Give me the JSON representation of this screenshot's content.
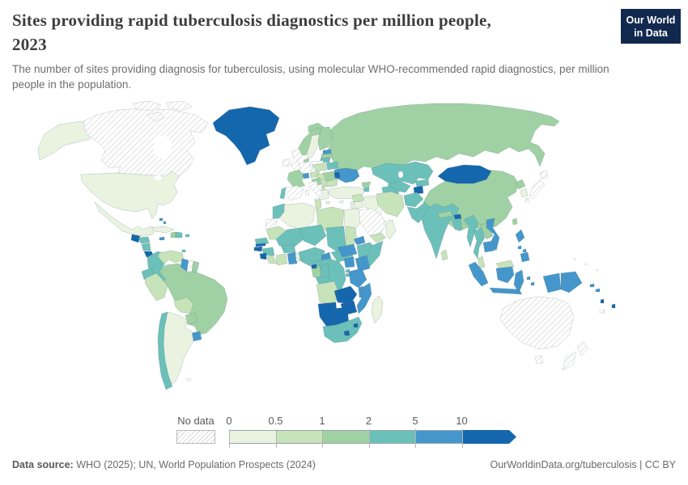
{
  "header": {
    "title_line1": "Sites providing rapid tuberculosis diagnostics per million people,",
    "title_line2": "2023",
    "subtitle": "The number of sites providing diagnosis for tuberculosis, using molecular WHO-recommended rapid diagnostics, per million people in the population.",
    "logo_line1": "Our World",
    "logo_line2": "in Data",
    "logo_bg": "#12294f",
    "logo_bar": "#d8252c"
  },
  "legend": {
    "no_data_label": "No data",
    "ticks": [
      "0",
      "0.5",
      "1",
      "2",
      "5",
      "10"
    ],
    "segment_width": 57.5,
    "colors": [
      "#e9f3e0",
      "#c7e3b9",
      "#a0d1a4",
      "#6cc0ba",
      "#4597cb",
      "#1567ad"
    ]
  },
  "footer": {
    "source_label": "Data source:",
    "source_text": " WHO (2025); UN, World Population Prospects (2024)",
    "link_text": "OurWorldinData.org/tuberculosis | CC BY"
  },
  "chart_data": {
    "type": "choropleth_map",
    "title": "Sites providing rapid tuberculosis diagnostics per million people, 2023",
    "year": "2023",
    "unit": "sites per million people",
    "bins": [
      "0–0.5",
      "0.5–1",
      "1–2",
      "2–5",
      "5–10",
      "10+"
    ],
    "bin_colors": [
      "#e9f3e0",
      "#c7e3b9",
      "#a0d1a4",
      "#6cc0ba",
      "#4597cb",
      "#1567ad"
    ],
    "no_data_style": "diagonal-hatch",
    "country_bins": {
      "United States": 0,
      "Mexico": 0,
      "Cuba": 0,
      "Argentina": 0,
      "Sweden": 0,
      "Greece": 0,
      "Turkey": 0,
      "Israel": 0,
      "Jordan": 0,
      "Iraq": 0,
      "Oman": 0,
      "Algeria": 0,
      "Egypt": 0,
      "Togo": 0,
      "South Korea": 0,
      "Madagascar": 0,
      "Venezuela": 1,
      "Peru": 1,
      "Bolivia": 1,
      "Austria": 1,
      "Czechia": 1,
      "Hungary": 1,
      "Serbia": 1,
      "Bulgaria": 1,
      "Albania": 1,
      "Tunisia": 1,
      "Libya": 1,
      "Mauritania": 1,
      "Sudan": 1,
      "Yemen": 1,
      "Syria": 1,
      "Iran": 1,
      "Angola": 1,
      "Cote d'Ivoire": 1,
      "Liberia": 1,
      "Malaysia": 1,
      "Sri Lanka": 1,
      "Brazil": 2,
      "Paraguay": 2,
      "Haiti": 2,
      "French Guiana": 2,
      "Iceland": 2,
      "Norway": 2,
      "Finland": 2,
      "Denmark": 2,
      "France": 2,
      "Latvia": 2,
      "Croatia": 2,
      "Romania": 2,
      "Georgia": 2,
      "Russia": 2,
      "China": 2,
      "North Korea": 2,
      "Taiwan": 2,
      "Nepal": 2,
      "Laos": 2,
      "Gabon": 2,
      "Colombia": 3,
      "Ecuador": 3,
      "Chile": 3,
      "Honduras": 3,
      "Nicaragua": 3,
      "Dominican Republic": 3,
      "Puerto Rico": 3,
      "Trinidad and Tobago": 3,
      "Portugal": 3,
      "Lithuania": 3,
      "Belarus": 3,
      "Armenia": 3,
      "Kazakhstan": 3,
      "Uzbekistan": 3,
      "Turkmenistan": 3,
      "Kyrgyzstan": 3,
      "Afghanistan": 3,
      "Pakistan": 3,
      "India": 3,
      "Bangladesh": 3,
      "Myanmar": 3,
      "Thailand": 3,
      "Morocco": 3,
      "Mali": 3,
      "Niger": 3,
      "Chad": 3,
      "Burkina Faso": 3,
      "Senegal": 3,
      "Guinea": 3,
      "Benin": 3,
      "Nigeria": 3,
      "Central African Republic": 3,
      "Ethiopia": 3,
      "Somalia": 3,
      "Djibouti": 3,
      "Democratic Republic of Congo": 3,
      "Congo": 3,
      "Rwanda": 3,
      "Burundi": 3,
      "South Africa": 3,
      "Panama": 4,
      "Jamaica": 4,
      "Bahamas": 4,
      "Uruguay": 4,
      "Guyana": 4,
      "Estonia": 4,
      "Ukraine": 4,
      "Switzerland": 4,
      "Azerbaijan": 4,
      "Ghana": 4,
      "Cameroon": 4,
      "Eritrea": 4,
      "South Sudan": 4,
      "Uganda": 4,
      "Kenya": 4,
      "Tanzania": 4,
      "Malawi": 4,
      "Mozambique": 4,
      "Vietnam": 4,
      "Cambodia": 4,
      "Philippines": 4,
      "Indonesia": 4,
      "Papua New Guinea": 4,
      "Solomon Islands": 4,
      "Greenland": 5,
      "Guatemala": 5,
      "Costa Rica": 5,
      "Moldova": 5,
      "Mongolia": 5,
      "Tajikistan": 5,
      "Bhutan": 5,
      "Gambia": 5,
      "Guinea-Bissau": 5,
      "Sierra Leone": 5,
      "Equatorial Guinea": 5,
      "Zambia": 5,
      "Zimbabwe": 5,
      "Namibia": 5,
      "Botswana": 5,
      "Lesotho": 5,
      "Eswatini": 5,
      "Vanuatu": 5,
      "Fiji": 5,
      "Canada": "no_data",
      "Suriname": "no_data",
      "Falkland Islands": "no_data",
      "United Kingdom": "no_data",
      "Ireland": "no_data",
      "Germany": "no_data",
      "Poland": "no_data",
      "Spain": "no_data",
      "Italy": "no_data",
      "Cyprus": "no_data",
      "Saudi Arabia": "no_data",
      "Kuwait": "no_data",
      "United Arab Emirates": "no_data",
      "Western Sahara": "no_data",
      "Japan": "no_data",
      "Australia": "no_data",
      "New Zealand": "no_data",
      "New Caledonia": "no_data"
    }
  }
}
